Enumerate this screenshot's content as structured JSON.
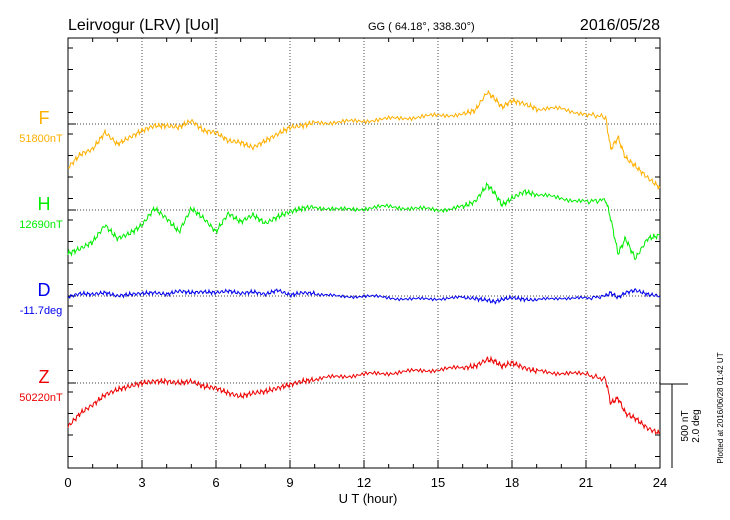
{
  "header": {
    "title": "Leirvogur (LRV)  [UoI]",
    "coords": "GG ( 64.18°, 338.30°)",
    "date": "2016/05/28"
  },
  "side_note": "Plotted at 2016/06/28 01:42 UT",
  "scale": {
    "nt": "500 nT",
    "deg": "2.0 deg"
  },
  "chart_data": {
    "type": "line",
    "xlabel": "U T (hour)",
    "xlim": [
      0,
      24
    ],
    "xticks": [
      "0",
      "3",
      "6",
      "9",
      "12",
      "15",
      "18",
      "21",
      "24"
    ],
    "grid": true,
    "series": [
      {
        "name": "F",
        "baseline_label": "51800nT",
        "color": "#ffb000",
        "baseline_value": 51800,
        "x": [
          0,
          0.5,
          1,
          1.5,
          2,
          2.5,
          3,
          3.5,
          4,
          4.5,
          5,
          5.5,
          6,
          6.5,
          7,
          7.5,
          8,
          8.5,
          9,
          9.5,
          10,
          11,
          12,
          13,
          14,
          15,
          16,
          16.5,
          17,
          17.3,
          17.6,
          18,
          18.5,
          19,
          20,
          21,
          21.8,
          22,
          22.3,
          22.6,
          23,
          23.5,
          24
        ],
        "y": [
          51540,
          51620,
          51650,
          51750,
          51680,
          51720,
          51760,
          51790,
          51790,
          51780,
          51820,
          51760,
          51750,
          51700,
          51690,
          51660,
          51700,
          51740,
          51780,
          51790,
          51810,
          51810,
          51820,
          51830,
          51840,
          51850,
          51860,
          51880,
          51990,
          51950,
          51900,
          51940,
          51920,
          51890,
          51890,
          51860,
          51840,
          51650,
          51720,
          51600,
          51550,
          51480,
          51420
        ]
      },
      {
        "name": "H",
        "baseline_label": "12690nT",
        "color": "#00ee00",
        "baseline_value": 12690,
        "x": [
          0,
          0.5,
          1,
          1.5,
          2,
          2.5,
          3,
          3.5,
          4,
          4.5,
          5,
          5.5,
          6,
          6.5,
          7,
          7.5,
          8,
          8.5,
          9,
          9.5,
          10,
          11,
          12,
          13,
          14,
          15,
          16,
          16.5,
          17,
          17.3,
          17.6,
          18,
          18.5,
          19,
          20,
          21,
          21.8,
          22,
          22.3,
          22.6,
          23,
          23.5,
          24
        ],
        "y": [
          12430,
          12460,
          12500,
          12600,
          12520,
          12550,
          12600,
          12700,
          12640,
          12560,
          12700,
          12640,
          12560,
          12670,
          12620,
          12660,
          12610,
          12650,
          12680,
          12700,
          12710,
          12690,
          12700,
          12710,
          12700,
          12690,
          12710,
          12740,
          12840,
          12790,
          12720,
          12760,
          12800,
          12780,
          12760,
          12740,
          12750,
          12640,
          12430,
          12520,
          12400,
          12520,
          12540
        ]
      },
      {
        "name": "D",
        "baseline_label": "-11.7deg",
        "color": "#0000ee",
        "baseline_value": -11.7,
        "x": [
          0,
          0.5,
          1,
          1.5,
          2,
          2.5,
          3,
          3.5,
          4,
          4.5,
          5,
          5.5,
          6,
          6.5,
          7,
          7.5,
          8,
          8.5,
          9,
          9.5,
          10,
          11,
          12,
          13,
          14,
          15,
          16,
          16.5,
          17,
          17.3,
          17.6,
          18,
          18.5,
          19,
          20,
          21,
          21.8,
          22,
          22.3,
          22.6,
          23,
          23.5,
          24
        ],
        "y": [
          -11.72,
          -11.64,
          -11.66,
          -11.62,
          -11.7,
          -11.66,
          -11.64,
          -11.62,
          -11.66,
          -11.58,
          -11.62,
          -11.6,
          -11.62,
          -11.58,
          -11.64,
          -11.6,
          -11.66,
          -11.56,
          -11.68,
          -11.62,
          -11.64,
          -11.72,
          -11.7,
          -11.74,
          -11.78,
          -11.76,
          -11.74,
          -11.76,
          -11.8,
          -11.84,
          -11.78,
          -11.74,
          -11.78,
          -11.8,
          -11.74,
          -11.76,
          -11.7,
          -11.62,
          -11.74,
          -11.62,
          -11.56,
          -11.66,
          -11.7
        ]
      },
      {
        "name": "Z",
        "baseline_label": "50220nT",
        "color": "#ee0000",
        "baseline_value": 50220,
        "x": [
          0,
          0.5,
          1,
          1.5,
          2,
          2.5,
          3,
          3.5,
          4,
          4.5,
          5,
          5.5,
          6,
          6.5,
          7,
          7.5,
          8,
          8.5,
          9,
          9.5,
          10,
          11,
          12,
          13,
          14,
          15,
          16,
          16.5,
          17,
          17.3,
          17.6,
          18,
          18.5,
          19,
          20,
          21,
          21.8,
          22,
          22.3,
          22.6,
          23,
          23.5,
          24
        ],
        "y": [
          49960,
          50040,
          50090,
          50150,
          50180,
          50200,
          50220,
          50230,
          50230,
          50220,
          50230,
          50200,
          50190,
          50160,
          50140,
          50160,
          50170,
          50190,
          50210,
          50230,
          50240,
          50260,
          50270,
          50280,
          50290,
          50300,
          50310,
          50320,
          50360,
          50350,
          50320,
          50340,
          50310,
          50290,
          50280,
          50270,
          50240,
          50100,
          50130,
          50040,
          50010,
          49950,
          49920
        ]
      }
    ]
  }
}
